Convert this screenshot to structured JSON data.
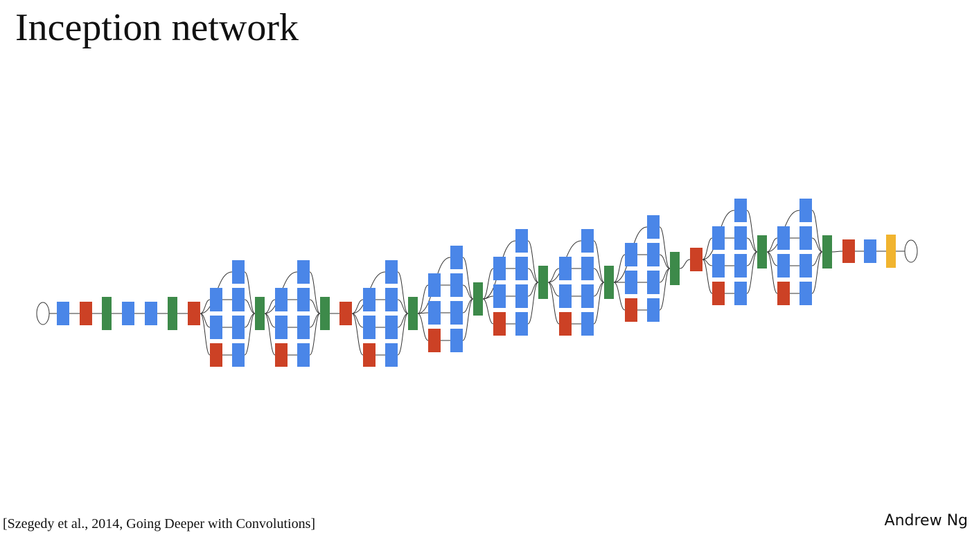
{
  "title": "Inception network",
  "citation": "[Szegedy et al., 2014, Going Deeper with Convolutions]",
  "author": "Andrew Ng"
}
